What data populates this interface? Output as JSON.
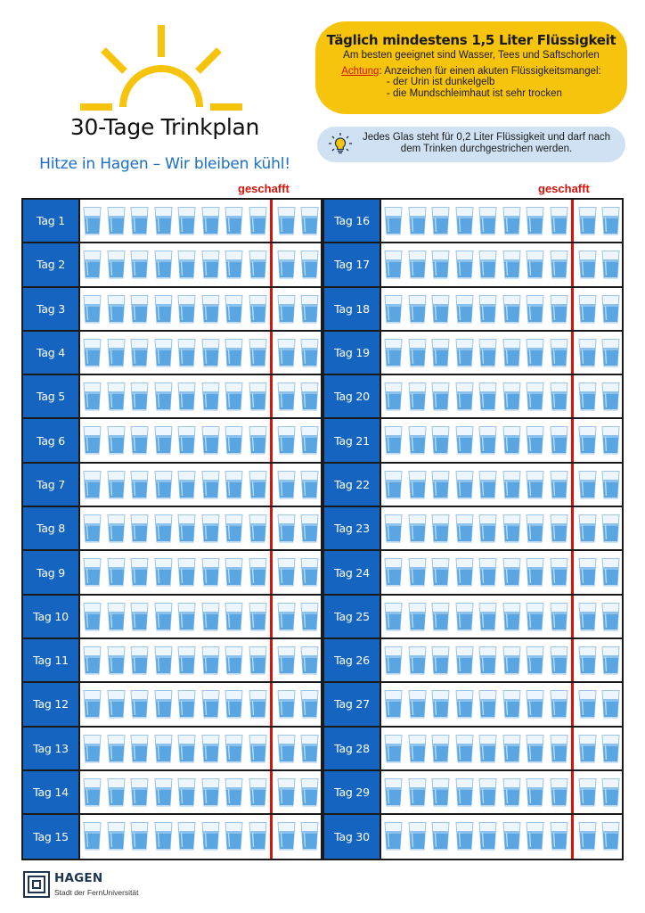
{
  "header": {
    "title": "30-Tage Trinkplan",
    "subtitle": "Hitze in Hagen – Wir bleiben kühl!"
  },
  "info_box": {
    "headline": "Täglich mindestens 1,5 Liter Flüssigkeit",
    "subline": "Am besten geeignet sind Wasser, Tees und Saftschorlen",
    "warning_label": "Achtung",
    "warning_text": ": Anzeichen für einen akuten Flüssigkeitsmangel:",
    "symptoms": [
      "- der Urin ist dunkelgelb",
      "- die Mundschleimhaut ist sehr trocken"
    ]
  },
  "tip_box": {
    "icon": "lightbulb-icon",
    "line1": "Jedes Glas steht für 0,2 Liter Flüssigkeit und darf nach",
    "line2": "dem Trinken durchgestrichen werden."
  },
  "goal_label": "geschafft",
  "glasses_per_day": 10,
  "glasses_before_goal_line": 8,
  "days_left": [
    "Tag 1",
    "Tag 2",
    "Tag 3",
    "Tag 4",
    "Tag 5",
    "Tag 6",
    "Tag 7",
    "Tag 8",
    "Tag 9",
    "Tag 10",
    "Tag 11",
    "Tag 12",
    "Tag 13",
    "Tag 14",
    "Tag 15"
  ],
  "days_right": [
    "Tag 16",
    "Tag 17",
    "Tag 18",
    "Tag 19",
    "Tag 20",
    "Tag 21",
    "Tag 22",
    "Tag 23",
    "Tag 24",
    "Tag 25",
    "Tag 26",
    "Tag 27",
    "Tag 28",
    "Tag 29",
    "Tag 30"
  ],
  "logo": {
    "name": "HAGEN",
    "tagline": "Stadt der FernUniversität"
  },
  "colors": {
    "accent_blue": "#1565c0",
    "goal_red": "#d6140c",
    "info_yellow": "#f6c40c",
    "tip_blue": "#cfe1f3",
    "sun_yellow": "#f6c40c"
  }
}
